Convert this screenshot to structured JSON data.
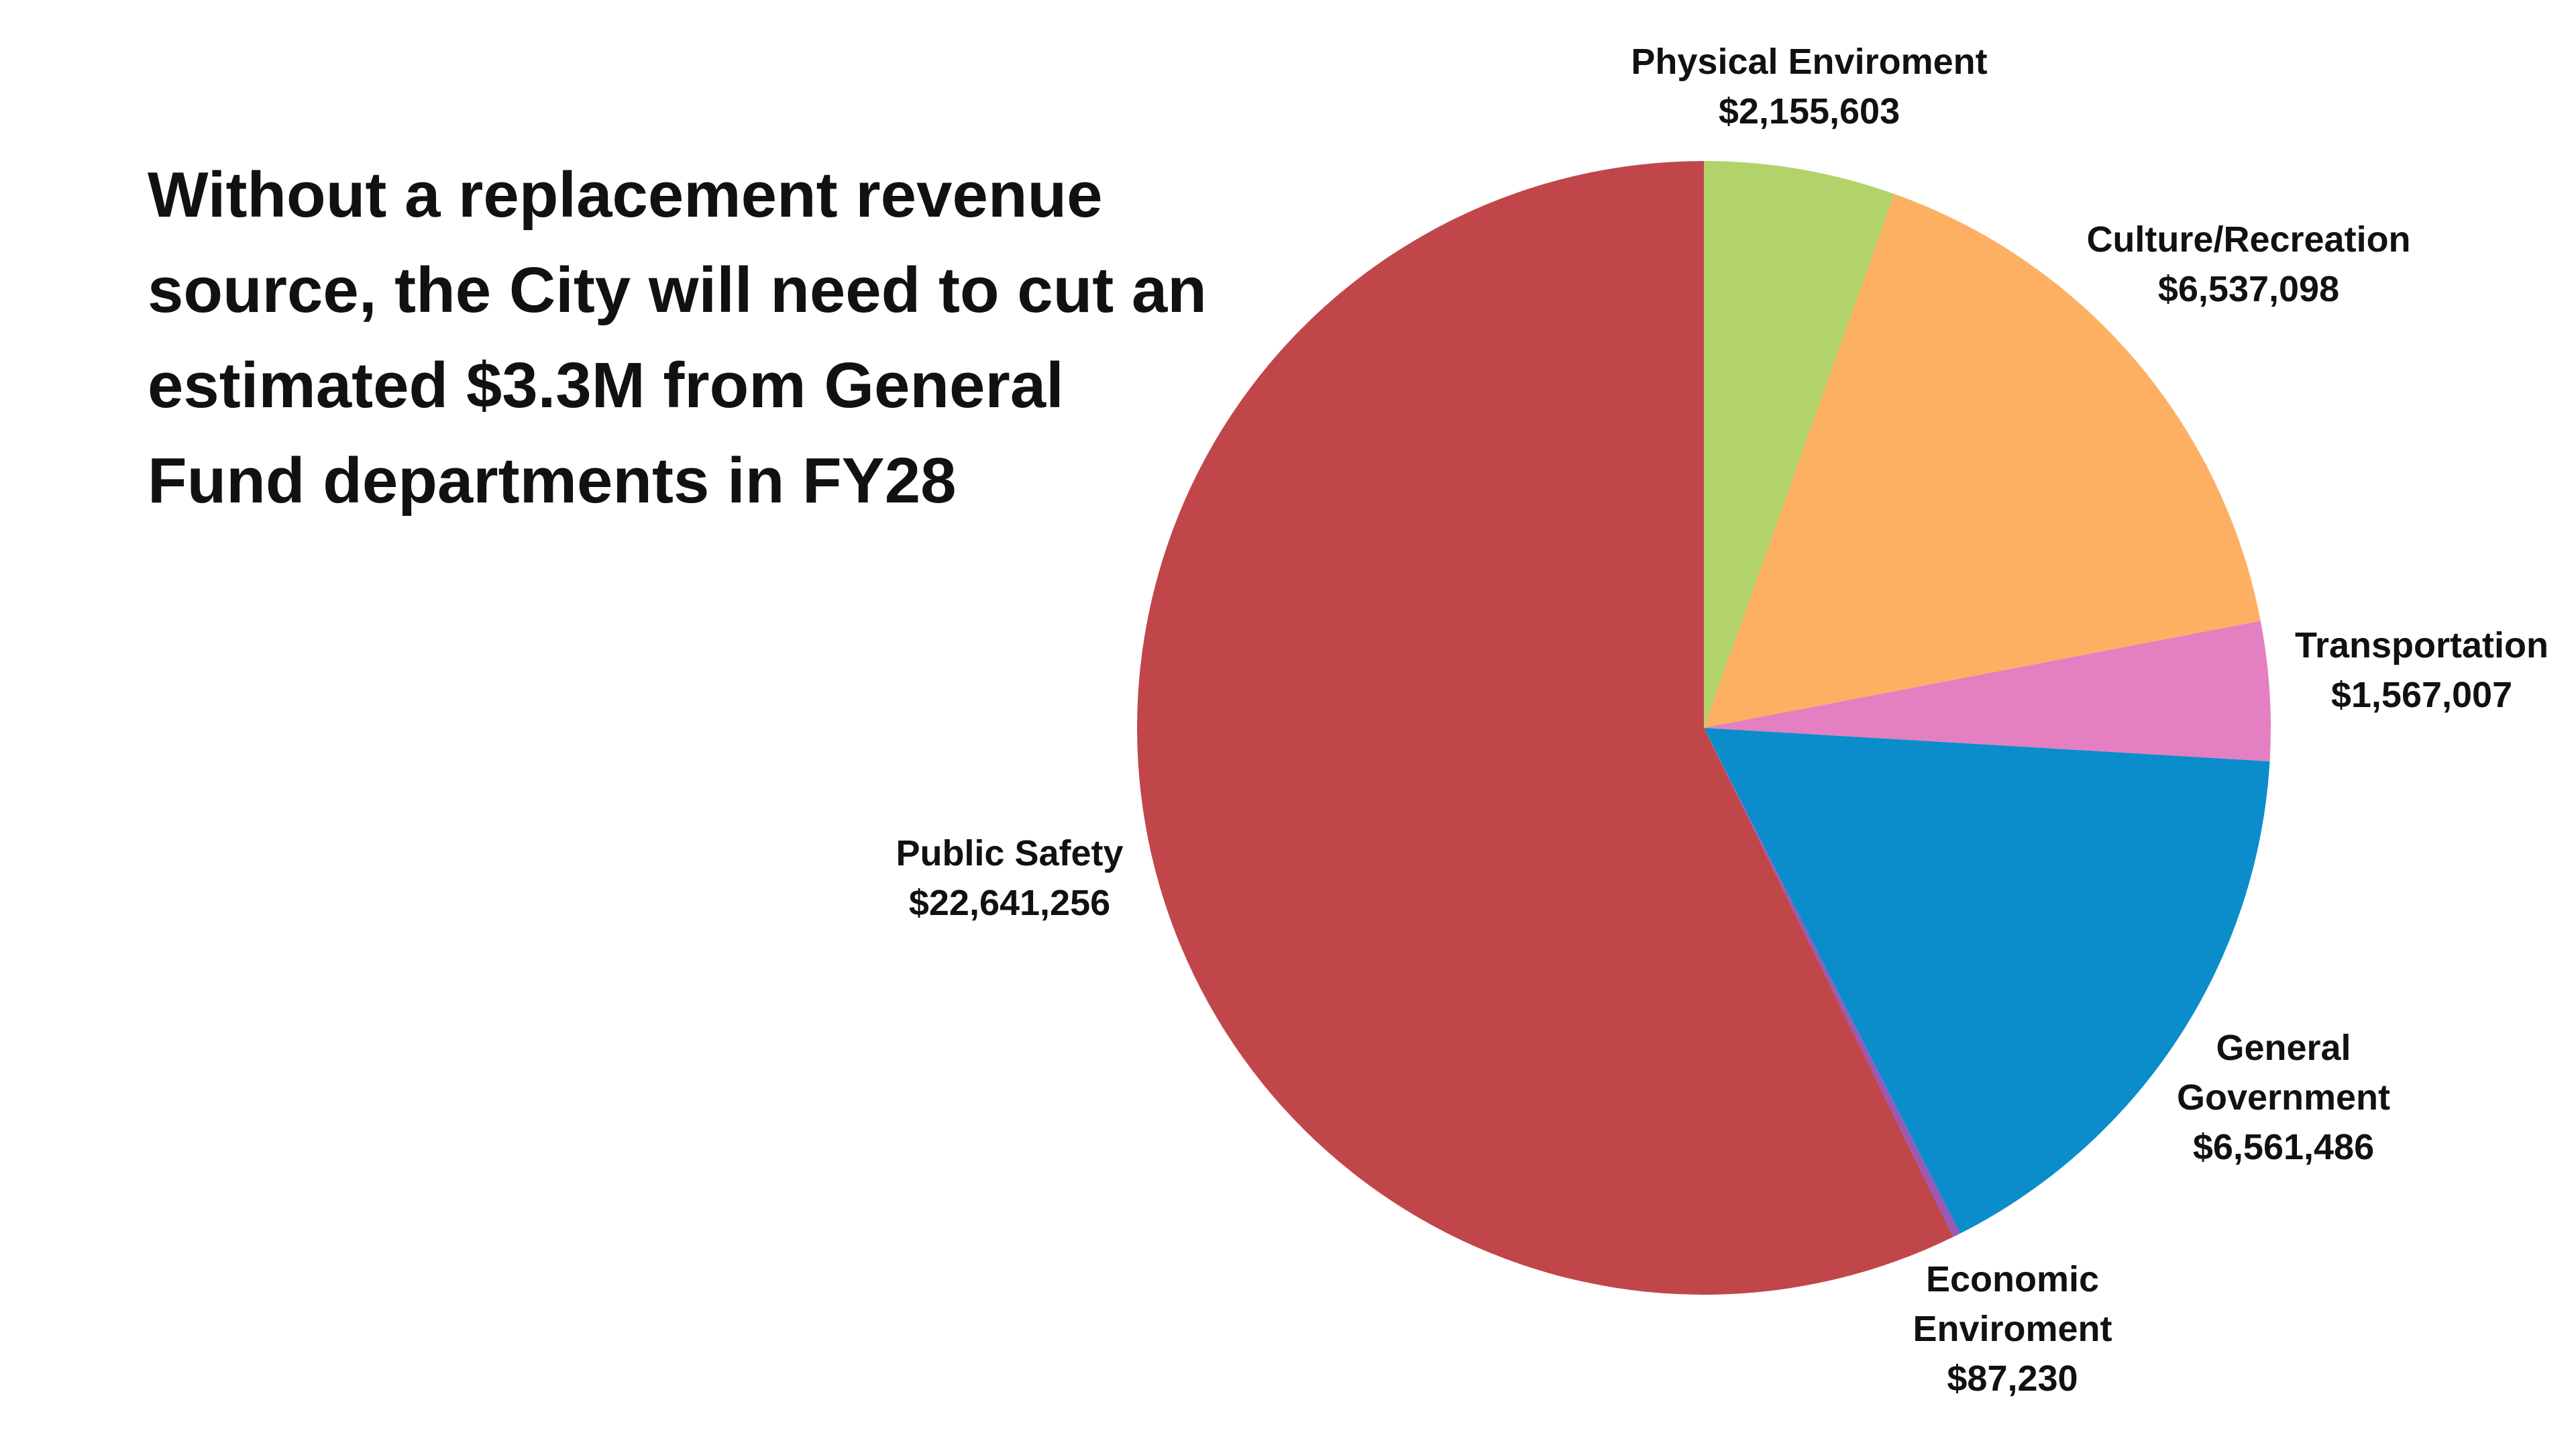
{
  "headline": "Without a replacement revenue source, the City will need to cut an estimated $3.3M from General Fund departments in FY28",
  "chart_data": {
    "type": "pie",
    "title": "",
    "slices": [
      {
        "category": "Physical Enviroment",
        "value": 2155603,
        "value_label": "$2,155,603",
        "label_lines": [
          "Physical Enviroment"
        ],
        "color": "#b1d36a"
      },
      {
        "category": "Culture/Recreation",
        "value": 6537098,
        "value_label": "$6,537,098",
        "label_lines": [
          "Culture/Recreation"
        ],
        "color": "#fdb061"
      },
      {
        "category": "Transportation",
        "value": 1567007,
        "value_label": "$1,567,007",
        "label_lines": [
          "Transportation"
        ],
        "color": "#e47fc2"
      },
      {
        "category": "General Government",
        "value": 6561486,
        "value_label": "$6,561,486",
        "label_lines": [
          "General",
          "Government"
        ],
        "color": "#0b8dcb"
      },
      {
        "category": "Economic Enviroment",
        "value": 87230,
        "value_label": "$87,230",
        "label_lines": [
          "Economic",
          "Enviroment"
        ],
        "color": "#9b59b6"
      },
      {
        "category": "Public Safety",
        "value": 22641256,
        "value_label": "$22,641,256",
        "label_lines": [
          "Public Safety"
        ],
        "color": "#c0464a"
      }
    ],
    "start_angle": "12 o'clock",
    "direction": "clockwise",
    "legend": "none"
  }
}
